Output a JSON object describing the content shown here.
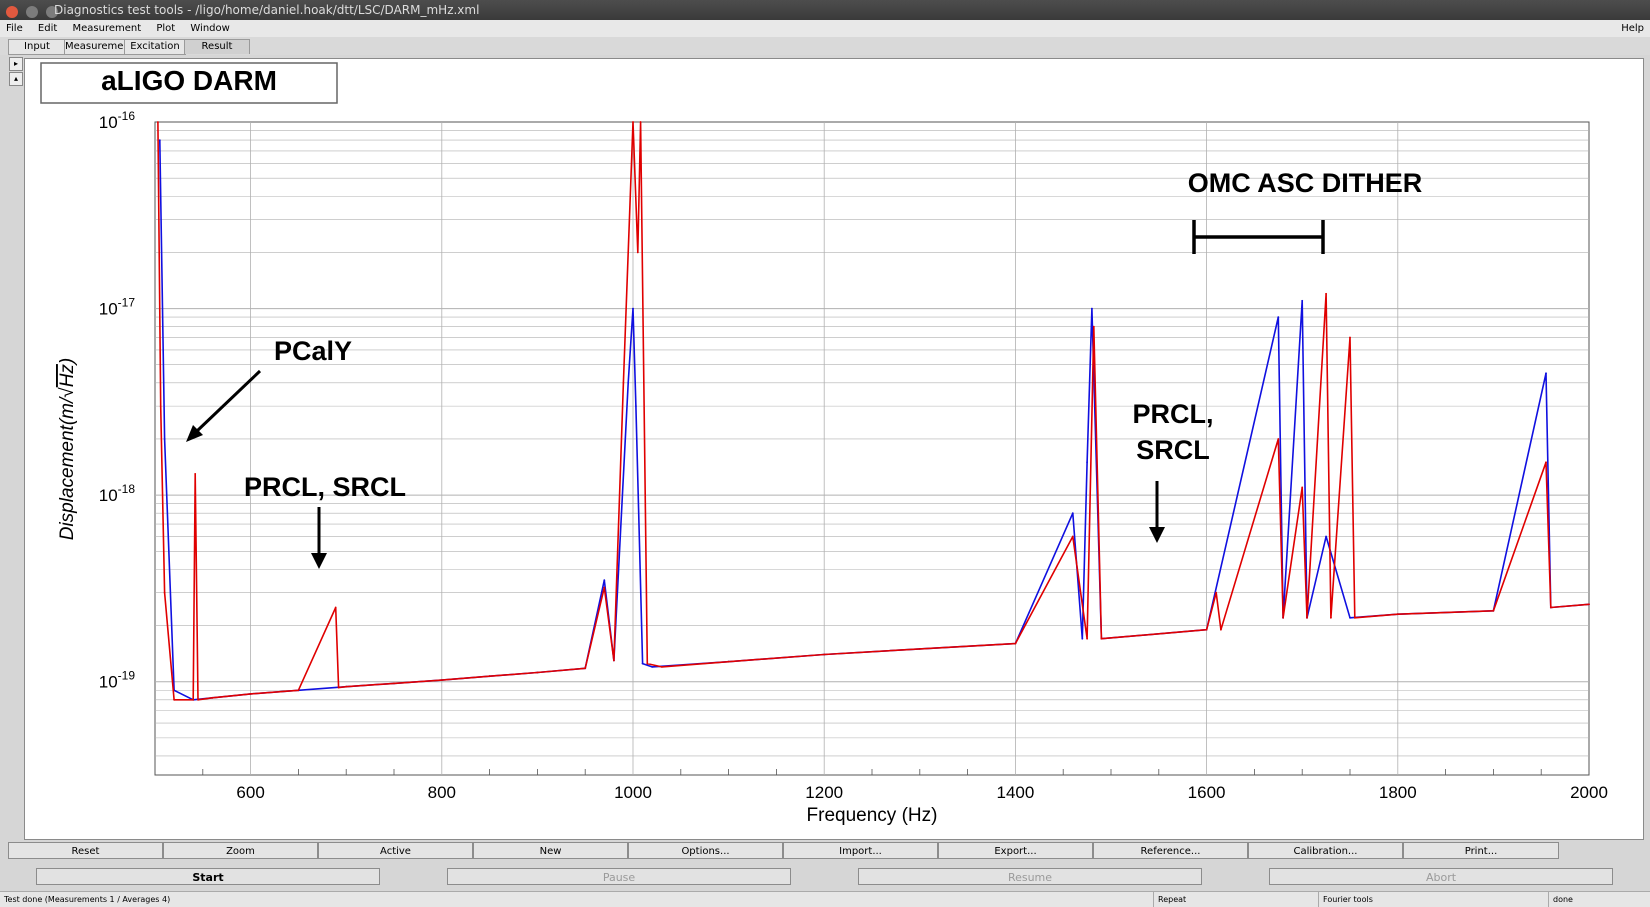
{
  "window": {
    "title": "Diagnostics test tools - /ligo/home/daniel.hoak/dtt/LSC/DARM_mHz.xml",
    "controls": {
      "close_color": "#e2593f",
      "minimize_color": "#7c7c7c",
      "maximize_color": "#7c7c7c"
    }
  },
  "menu": {
    "items": [
      "File",
      "Edit",
      "Measurement",
      "Plot",
      "Window"
    ],
    "help": "Help"
  },
  "tabs": [
    {
      "label": "Input",
      "active": false
    },
    {
      "label": "Measurement",
      "active": false
    },
    {
      "label": "Excitation",
      "active": false
    },
    {
      "label": "Result",
      "active": true
    }
  ],
  "side_arrows": [
    "▸",
    "▴"
  ],
  "plot": {
    "title_box": "aLIGO DARM",
    "annotations": {
      "pcaly": "PCalY",
      "prcl_srcl_low": "PRCL, SRCL",
      "prcl_line1": "PRCL,",
      "srcl_line2": "SRCL",
      "omc": "OMC ASC DITHER"
    },
    "colors": {
      "trace_red": "#e00000",
      "trace_blue": "#1010e0",
      "grid": "#b0b0b0"
    }
  },
  "chart_data": {
    "type": "line",
    "title": "aLIGO DARM",
    "xlabel": "Frequency (Hz)",
    "ylabel_prefix": "Displacement(m/",
    "ylabel_sqrt": "Hz",
    "ylabel_suffix": ")",
    "xlim": [
      500,
      2000
    ],
    "ylim_log10": [
      -19.5,
      -16
    ],
    "y_scale": "log",
    "grid": true,
    "x_ticks": [
      "600",
      "800",
      "1000",
      "1200",
      "1400",
      "1600",
      "1800",
      "2000"
    ],
    "y_ticks": [
      {
        "base": "10",
        "exp": "-16",
        "log": -16
      },
      {
        "base": "10",
        "exp": "-17",
        "log": -17
      },
      {
        "base": "10",
        "exp": "-18",
        "log": -18
      },
      {
        "base": "10",
        "exp": "-19",
        "log": -19
      }
    ],
    "series": [
      {
        "color": "#1010e0",
        "x": [
          505,
          510,
          520,
          540,
          560,
          600,
          650,
          700,
          750,
          800,
          850,
          900,
          950,
          970,
          980,
          995,
          1000,
          1003,
          1010,
          1020,
          1100,
          1200,
          1300,
          1400,
          1460,
          1470,
          1475,
          1480,
          1490,
          1600,
          1675,
          1680,
          1700,
          1705,
          1725,
          1750,
          1800,
          1900,
          1955,
          1960,
          2000
        ],
        "y": [
          8e-17,
          2e-18,
          9e-20,
          8e-20,
          8.2e-20,
          8.6e-20,
          9e-20,
          9.4e-20,
          9.8e-20,
          1.02e-19,
          1.07e-19,
          1.12e-19,
          1.18e-19,
          3.5e-19,
          1.3e-19,
          4e-18,
          1e-17,
          3e-18,
          1.25e-19,
          1.2e-19,
          1.28e-19,
          1.4e-19,
          1.5e-19,
          1.6e-19,
          8e-19,
          1.7e-19,
          1.5e-18,
          1e-17,
          1.7e-19,
          1.9e-19,
          9e-18,
          2.2e-19,
          1.1e-17,
          2.2e-19,
          6e-19,
          2.2e-19,
          2.3e-19,
          2.4e-19,
          4.5e-18,
          2.5e-19,
          2.6e-19
        ]
      },
      {
        "color": "#e00000",
        "x": [
          503,
          506,
          510,
          520,
          540,
          542,
          545,
          560,
          600,
          650,
          689,
          692,
          700,
          750,
          800,
          850,
          900,
          950,
          970,
          980,
          990,
          1000,
          1005,
          1008,
          1015,
          1030,
          1100,
          1200,
          1300,
          1400,
          1460,
          1475,
          1482,
          1490,
          1600,
          1610,
          1615,
          1675,
          1680,
          1700,
          1705,
          1725,
          1730,
          1750,
          1755,
          1800,
          1900,
          1955,
          1960,
          2000
        ],
        "y": [
          1e-16,
          3e-18,
          3e-19,
          8e-20,
          8e-20,
          1.3e-18,
          8e-20,
          8.2e-20,
          8.6e-20,
          9e-20,
          2.5e-19,
          9.3e-20,
          9.4e-20,
          9.8e-20,
          1.02e-19,
          1.07e-19,
          1.12e-19,
          1.18e-19,
          3.2e-19,
          1.3e-19,
          4e-18,
          1e-16,
          2e-17,
          1e-16,
          1.25e-19,
          1.2e-19,
          1.28e-19,
          1.4e-19,
          1.5e-19,
          1.6e-19,
          6e-19,
          1.7e-19,
          8e-18,
          1.7e-19,
          1.9e-19,
          3e-19,
          1.9e-19,
          2e-18,
          2.2e-19,
          1.1e-18,
          2.2e-19,
          1.2e-17,
          2.2e-19,
          7e-18,
          2.2e-19,
          2.3e-19,
          2.4e-19,
          1.5e-18,
          2.5e-19,
          2.6e-19
        ]
      }
    ]
  },
  "buttons": [
    "Reset",
    "Zoom",
    "Active",
    "New",
    "Options...",
    "Import...",
    "Export...",
    "Reference...",
    "Calibration...",
    "Print..."
  ],
  "run_buttons": [
    {
      "label": "Start",
      "enabled": true
    },
    {
      "label": "Pause",
      "enabled": false
    },
    {
      "label": "Resume",
      "enabled": false
    },
    {
      "label": "Abort",
      "enabled": false
    }
  ],
  "status": {
    "main": "Test done (Measurements 1 / Averages 4)",
    "mode": "Repeat",
    "tools": "Fourier tools",
    "state": "done"
  }
}
